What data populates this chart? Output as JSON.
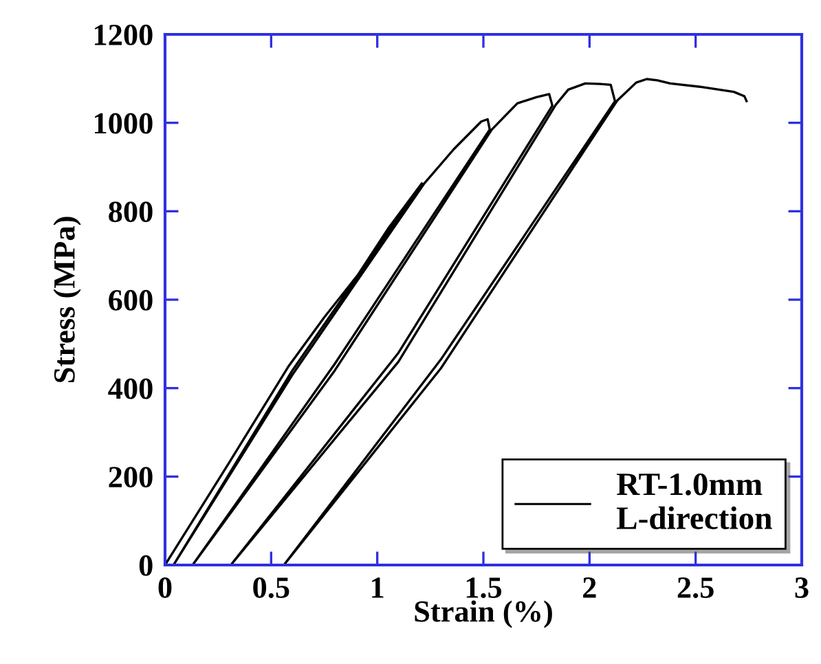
{
  "chart_data": {
    "type": "line",
    "xlabel": "Strain (%)",
    "ylabel": "Stress (MPa)",
    "xlim": [
      0,
      3
    ],
    "ylim": [
      0,
      1200
    ],
    "xticks": [
      0,
      0.5,
      1,
      1.5,
      2,
      2.5,
      3
    ],
    "yticks": [
      0,
      200,
      400,
      600,
      800,
      1000,
      1200
    ],
    "grid": false,
    "legend": "bottom right",
    "marker": "none",
    "line_style": "solid",
    "series": [
      {
        "name": "RT-1.0mm\nL-direction",
        "color": "#000000",
        "x": [
          0,
          0.3,
          0.58,
          0.75,
          0.907,
          1.05,
          1.21,
          0.6,
          0.04,
          0.6,
          1.22,
          1.36,
          1.49,
          1.52,
          1.53,
          0.8,
          0.13,
          0.8,
          1.54,
          1.66,
          1.75,
          1.81,
          1.825,
          1.1,
          0.31,
          1.1,
          1.84,
          1.9,
          1.98,
          2.05,
          2.1,
          2.12,
          1.3,
          0.56,
          1.3,
          2.13,
          2.22,
          2.27,
          2.32,
          2.38,
          2.53,
          2.68,
          2.73,
          2.74
        ],
        "values": [
          0,
          230,
          448,
          560,
          655,
          760,
          863,
          440,
          0,
          430,
          862,
          940,
          1003,
          1008,
          985,
          455,
          0,
          440,
          985,
          1044,
          1058,
          1065,
          1039,
          480,
          0,
          460,
          1040,
          1075,
          1089,
          1088,
          1086,
          1049,
          465,
          0,
          445,
          1050,
          1091,
          1099,
          1096,
          1089,
          1081,
          1070,
          1060,
          1049
        ]
      }
    ]
  }
}
